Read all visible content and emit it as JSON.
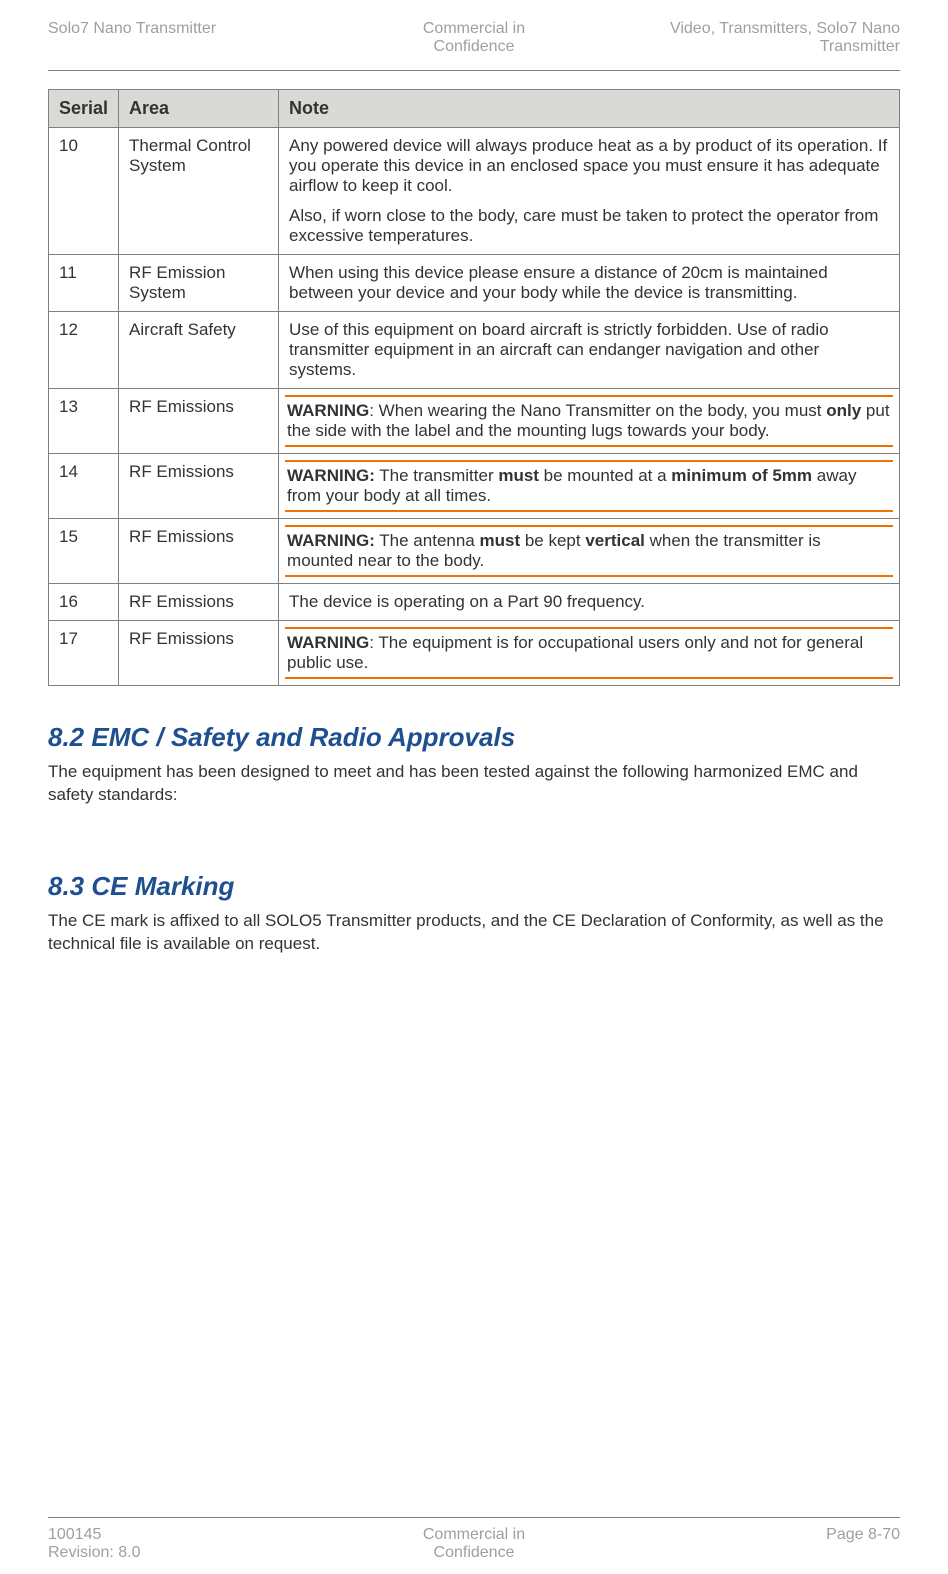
{
  "header": {
    "left": "Solo7 Nano Transmitter",
    "center_line1": "Commercial in",
    "center_line2": "Confidence",
    "right_line1": "Video, Transmitters, Solo7 Nano",
    "right_line2": "Transmitter"
  },
  "table": {
    "headers": {
      "serial": "Serial",
      "area": "Area",
      "note": "Note"
    },
    "rows": [
      {
        "serial": "10",
        "area": "Thermal Control System",
        "kind": "plain",
        "paragraphs": [
          "Any powered device will always produce heat as a by product of its operation. If you operate this device in an enclosed space you must ensure it has adequate airflow to keep it cool.",
          "Also, if worn close to the body, care must be taken to protect the operator from excessive temperatures."
        ]
      },
      {
        "serial": "11",
        "area": "RF Emission System",
        "kind": "plain",
        "paragraphs": [
          "When using this device please ensure a distance of 20cm is maintained between your device and your body while the device is transmitting."
        ]
      },
      {
        "serial": "12",
        "area": "Aircraft Safety",
        "kind": "plain",
        "paragraphs": [
          "Use of this equipment on board aircraft is strictly forbidden. Use of radio transmitter equipment in an aircraft can endanger navigation and other systems."
        ]
      },
      {
        "serial": "13",
        "area": "RF Emissions",
        "kind": "warning",
        "html": "<strong>WARNING</strong>: When wearing the Nano Transmitter on the body, you must <strong>only</strong> put the side with the label and the mounting lugs towards your body."
      },
      {
        "serial": "14",
        "area": "RF Emissions",
        "kind": "warning",
        "html": "<strong>WARNING:</strong> The transmitter <strong>must</strong> be mounted at a <strong>minimum of 5mm</strong> away from your body at all times."
      },
      {
        "serial": "15",
        "area": "RF Emissions",
        "kind": "warning",
        "html": "<strong>WARNING:</strong> The antenna <strong>must</strong> be kept <strong>vertical</strong> when the transmitter is mounted near to the body."
      },
      {
        "serial": "16",
        "area": "RF Emissions",
        "kind": "plain",
        "paragraphs": [
          "The device is operating on a Part 90 frequency."
        ]
      },
      {
        "serial": "17",
        "area": "RF Emissions",
        "kind": "warning",
        "html": "<strong>WARNING</strong>: The equipment is for occupational users only and not for general public use."
      }
    ]
  },
  "sections": {
    "s82": {
      "heading": "8.2   EMC / Safety and Radio Approvals",
      "body": "The equipment has been designed to meet and has been tested against the following harmonized EMC and safety standards:"
    },
    "s83": {
      "heading": "8.3   CE Marking",
      "body": "The CE mark is affixed to all SOLO5 Transmitter products, and the CE Declaration of Conformity, as well as the technical file is available on request."
    }
  },
  "footer": {
    "left_line1": "100145",
    "left_line2": "Revision: 8.0",
    "center_line1": "Commercial in",
    "center_line2": "Confidence",
    "right": "Page 8-70"
  }
}
